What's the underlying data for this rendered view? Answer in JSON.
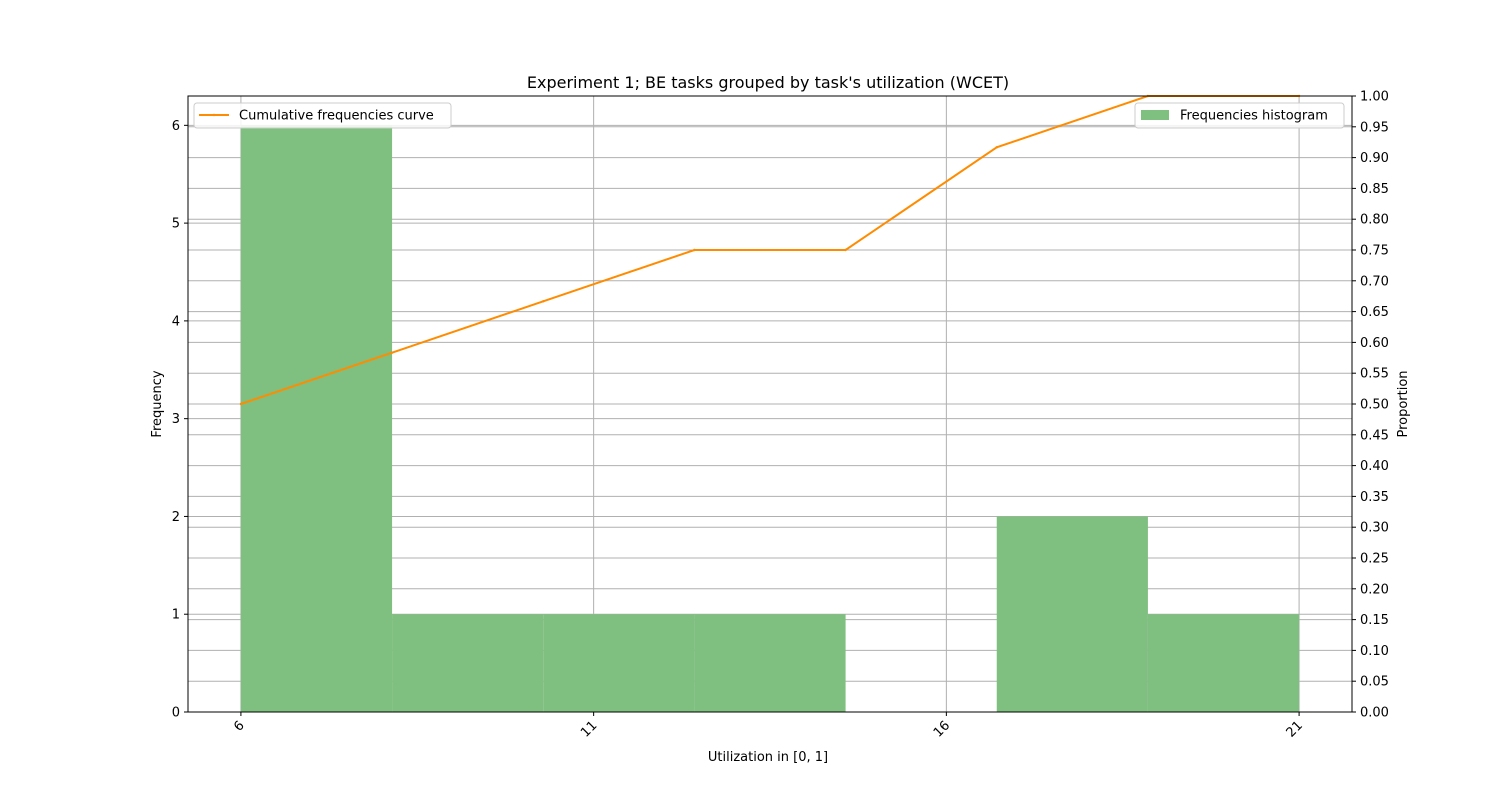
{
  "chart_data": {
    "type": "bar",
    "title": "Experiment 1; BE tasks grouped by task's utilization (WCET)",
    "xlabel": "Utilization in [0, 1]",
    "ylabel": "Frequency",
    "y2label": "Proportion",
    "xlim": [
      5.25,
      21.75
    ],
    "ylim": [
      0,
      6.3
    ],
    "y2lim": [
      0,
      1.0
    ],
    "xticks": [
      "6",
      "11",
      "16",
      "21"
    ],
    "xtick_values": [
      6,
      11,
      16,
      21
    ],
    "yticks": [
      "0",
      "1",
      "2",
      "3",
      "4",
      "5",
      "6"
    ],
    "yticks_right": [
      "0.00",
      "0.05",
      "0.10",
      "0.15",
      "0.20",
      "0.25",
      "0.30",
      "0.35",
      "0.40",
      "0.45",
      "0.50",
      "0.55",
      "0.60",
      "0.65",
      "0.70",
      "0.75",
      "0.80",
      "0.85",
      "0.90",
      "0.95",
      "1.00"
    ],
    "grid": true,
    "histogram": {
      "name": "Frequencies histogram",
      "color": "#7fbf7f",
      "bin_edges": [
        6,
        8.1428,
        10.2857,
        12.4286,
        14.5714,
        16.7143,
        18.8571,
        21
      ],
      "values": [
        6,
        1,
        1,
        1,
        0,
        2,
        1
      ]
    },
    "curve": {
      "name": "Cumulative frequencies curve",
      "color": "#ff8c00",
      "x": [
        6,
        8.1428,
        10.2857,
        12.4286,
        14.5714,
        16.7143,
        18.8571,
        21
      ],
      "y": [
        0.5,
        0.5833,
        0.6667,
        0.75,
        0.75,
        0.9167,
        1.0,
        1.0
      ]
    },
    "legend_curve_position": "upper-left",
    "legend_hist_position": "upper-right"
  }
}
